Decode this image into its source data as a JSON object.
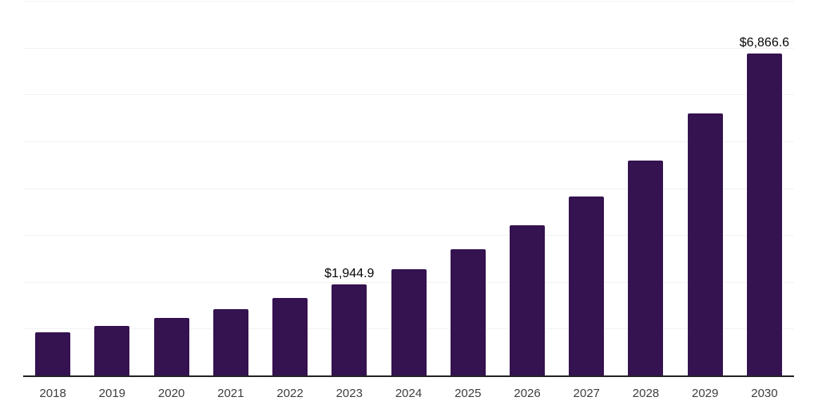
{
  "chart_data": {
    "type": "bar",
    "title": "",
    "xlabel": "",
    "ylabel": "",
    "categories": [
      "2018",
      "2019",
      "2020",
      "2021",
      "2022",
      "2023",
      "2024",
      "2025",
      "2026",
      "2027",
      "2028",
      "2029",
      "2030"
    ],
    "values": [
      920,
      1057,
      1227,
      1425,
      1660,
      1944.9,
      2270,
      2695,
      3205,
      3820,
      4590,
      5595,
      6866.6
    ],
    "data_labels": [
      "",
      "",
      "",
      "",
      "",
      "$1,944.9",
      "",
      "",
      "",
      "",
      "",
      "",
      "$6,866.6"
    ],
    "ylim": [
      0,
      8000
    ],
    "gridline_interval": 1000,
    "grid": "horizontal",
    "legend_position": "none",
    "y_tick_labels_visible": false,
    "colors": {
      "bar": "#351250",
      "gridline": "#f2f2f2",
      "axis_line": "#232323",
      "tick_label": "#3e3e3e",
      "data_label": "#050505",
      "background": "#ffffff"
    }
  }
}
